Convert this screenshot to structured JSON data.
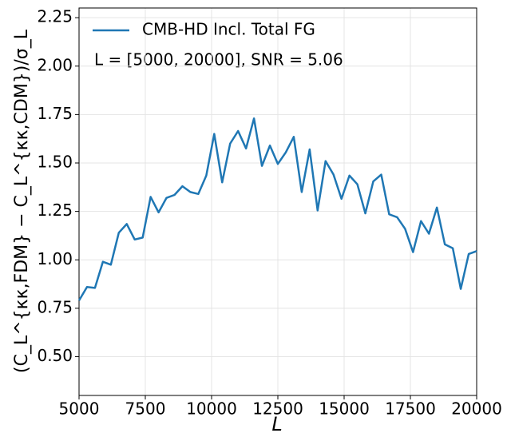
{
  "chart_data": {
    "type": "line",
    "x_label": "L",
    "y_label": "(C_L^{κκ,FDM} − C_L^{κκ,CDM})/σ_L",
    "annotation": "L = [5000, 20000], SNR =  5.06",
    "legend": "upper left",
    "grid": true,
    "xlim": [
      5000,
      20000
    ],
    "xticks": [
      5000,
      7500,
      10000,
      12500,
      15000,
      17500,
      20000
    ],
    "ylim": [
      0.3,
      2.3
    ],
    "yticks": [
      {
        "value": 0.5,
        "label": "0.50"
      },
      {
        "value": 0.75,
        "label": "0.75"
      },
      {
        "value": 1,
        "label": "1.00"
      },
      {
        "value": 1.25,
        "label": "1.25"
      },
      {
        "value": 1.5,
        "label": "1.50"
      },
      {
        "value": 1.75,
        "label": "1.75"
      },
      {
        "value": 2,
        "label": "2.00"
      },
      {
        "value": 2.25,
        "label": "2.25"
      }
    ],
    "x": [
      5000,
      5300,
      5600,
      5900,
      6200,
      6500,
      6800,
      7100,
      7400,
      7700,
      8000,
      8300,
      8600,
      8900,
      9200,
      9500,
      9800,
      10100,
      10400,
      10700,
      11000,
      11300,
      11600,
      11900,
      12200,
      12500,
      12800,
      13100,
      13400,
      13700,
      14000,
      14300,
      14600,
      14900,
      15200,
      15500,
      15800,
      16100,
      16400,
      16700,
      17000,
      17300,
      17600,
      17900,
      18200,
      18500,
      18800,
      19100,
      19400,
      19700,
      20000
    ],
    "series": [
      {
        "name": "CMB-HD Incl. Total FG",
        "color": "#1f77b4",
        "values": [
          0.79,
          0.86,
          0.855,
          0.99,
          0.975,
          1.14,
          1.185,
          1.105,
          1.115,
          1.325,
          1.245,
          1.32,
          1.335,
          1.38,
          1.35,
          1.34,
          1.435,
          1.65,
          1.4,
          1.6,
          1.665,
          1.575,
          1.73,
          1.485,
          1.59,
          1.495,
          1.555,
          1.635,
          1.35,
          1.57,
          1.255,
          1.51,
          1.44,
          1.315,
          1.435,
          1.39,
          1.24,
          1.405,
          1.44,
          1.235,
          1.22,
          1.16,
          1.04,
          1.2,
          1.135,
          1.27,
          1.08,
          1.06,
          0.85,
          1.03,
          1.045
        ]
      }
    ]
  }
}
